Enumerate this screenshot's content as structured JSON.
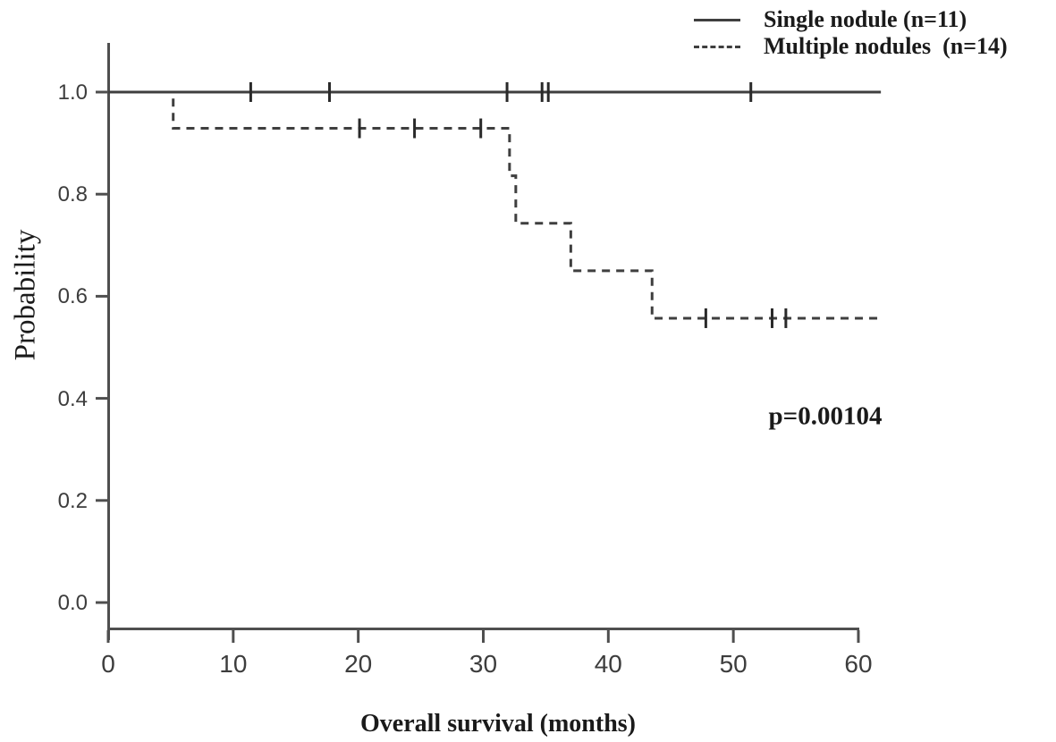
{
  "figure": {
    "background": "#ffffff",
    "colors": {
      "axis": "#4f4f4f",
      "curve": "#3f3f3f",
      "censor": "#2a2a2a",
      "tick_label": "#3d3d3d",
      "text": "#1a1a1a"
    }
  },
  "labels": {
    "y_axis": "Probability",
    "x_axis": "Overall survival (months)",
    "p_value": "p=0.00104"
  },
  "legend": {
    "position": "top-right",
    "items": [
      {
        "label": "Single nodule (n=11)",
        "line_style": "solid"
      },
      {
        "label": "Multiple nodules  (n=14)",
        "line_style": "dashed"
      }
    ]
  },
  "chart_data": {
    "type": "line",
    "subtype": "kaplan-meier-step",
    "title": "",
    "xlabel": "Overall survival (months)",
    "ylabel": "Probability",
    "xlim": [
      0,
      62
    ],
    "ylim": [
      0,
      1.04
    ],
    "x_ticks": [
      0,
      10,
      20,
      30,
      40,
      50,
      60
    ],
    "y_ticks": [
      "0.0",
      "0.2",
      "0.4",
      "0.6",
      "0.8",
      "1.0"
    ],
    "grid": false,
    "legend_position": "top-right",
    "p_value": "p=0.00104",
    "series": [
      {
        "name": "Single nodule (n=11)",
        "line_style": "solid",
        "color": "#3f3f3f",
        "steps": [
          [
            0,
            1.0
          ],
          [
            61.8,
            1.0
          ]
        ],
        "censor_times": [
          11.4,
          17.7,
          31.9,
          34.7,
          35.2,
          51.4
        ]
      },
      {
        "name": "Multiple nodules (n=14)",
        "line_style": "dashed",
        "color": "#3f3f3f",
        "steps": [
          [
            0,
            1.0
          ],
          [
            5.2,
            1.0
          ],
          [
            5.2,
            0.929
          ],
          [
            32.1,
            0.929
          ],
          [
            32.1,
            0.836
          ],
          [
            32.6,
            0.836
          ],
          [
            32.6,
            0.743
          ],
          [
            37.0,
            0.743
          ],
          [
            37.0,
            0.65
          ],
          [
            43.5,
            0.65
          ],
          [
            43.5,
            0.557
          ],
          [
            61.8,
            0.557
          ]
        ],
        "censor_times": [
          20.1,
          24.5,
          29.8,
          47.8,
          53.1,
          54.2
        ]
      }
    ]
  }
}
